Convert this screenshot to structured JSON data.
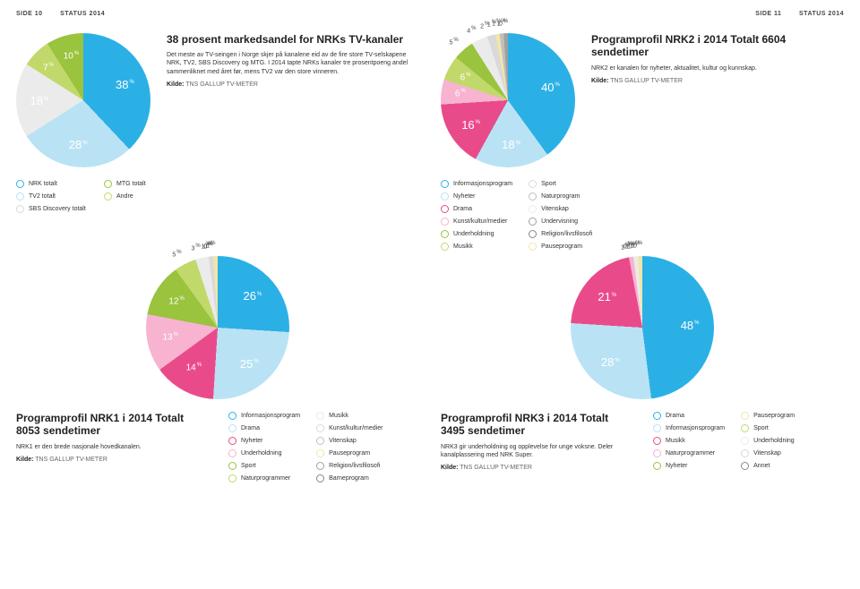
{
  "header": {
    "left_page": "SIDE 10",
    "left_status": "STATUS 2014",
    "right_page": "SIDE 11",
    "right_status": "STATUS 2014"
  },
  "chart1": {
    "title": "38 prosent markedsandel for NRKs TV-kanaler",
    "body": "Det meste av TV-seingen i Norge skjer på kanalene eid av de fire store TV-selskapene NRK, TV2, SBS Discovery og MTG. I 2014 tapte NRKs kanaler tre prosentpoeng andel sammenliknet med året før, mens TV2 var den store vinneren.",
    "source_label": "Kilde:",
    "source": "TNS GALLUP TV-METER",
    "size": 150,
    "slices": [
      {
        "label": "38",
        "pct": 38,
        "color": "#2bb0e6"
      },
      {
        "label": "28",
        "pct": 28,
        "color": "#b9e3f5"
      },
      {
        "label": "18",
        "pct": 18,
        "color": "#ebebeb"
      },
      {
        "label": "7",
        "pct": 7,
        "color": "#c1d96a"
      },
      {
        "label": "10",
        "pct": 10,
        "color": "#9ac33e"
      }
    ],
    "legend": [
      {
        "label": "NRK totalt",
        "color": "#2bb0e6"
      },
      {
        "label": "TV2 totalt",
        "color": "#b9e3f5"
      },
      {
        "label": "SBS Discovery totalt",
        "color": "#d9d9d9"
      },
      {
        "label": "MTG totalt",
        "color": "#9ac33e"
      },
      {
        "label": "Andre",
        "color": "#c1d96a"
      }
    ]
  },
  "chart2": {
    "title": "Programprofil NRK2 i 2014 Totalt 6604 sendetimer",
    "body": "NRK2 er kanalen for nyheter, aktualitet, kultur og kunnskap.",
    "source_label": "Kilde:",
    "source": "TNS GALLUP TV-METER",
    "size": 150,
    "slices": [
      {
        "label": "40",
        "pct": 40,
        "color": "#2bb0e6"
      },
      {
        "label": "18",
        "pct": 18,
        "color": "#b9e3f5"
      },
      {
        "label": "16",
        "pct": 16,
        "color": "#e94b8a"
      },
      {
        "label": "6",
        "pct": 6,
        "color": "#f7b3d0"
      },
      {
        "label": "6",
        "pct": 6,
        "color": "#c1d96a"
      },
      {
        "label": "5",
        "pct": 5,
        "color": "#9ac33e"
      },
      {
        "label": "4",
        "pct": 4,
        "color": "#ebebeb"
      },
      {
        "label": "2",
        "pct": 2,
        "color": "#d9d9d9"
      },
      {
        "label": "1",
        "pct": 1,
        "color": "#f0e6a8"
      },
      {
        "label": "1",
        "pct": 1,
        "color": "#bfbfbf"
      },
      {
        "label": "1",
        "pct": 1,
        "color": "#a0a0a0"
      },
      {
        "label": "0",
        "pct": 0,
        "color": "#888"
      }
    ],
    "legend": [
      {
        "label": "Informasjonsprogram",
        "color": "#2bb0e6"
      },
      {
        "label": "Nyheter",
        "color": "#b9e3f5"
      },
      {
        "label": "Drama",
        "color": "#e94b8a"
      },
      {
        "label": "Kunst/kultur/medier",
        "color": "#f7b3d0"
      },
      {
        "label": "Underholdning",
        "color": "#9ac33e"
      },
      {
        "label": "Musikk",
        "color": "#c1d96a"
      },
      {
        "label": "Sport",
        "color": "#d9d9d9"
      },
      {
        "label": "Naturprogram",
        "color": "#bfbfbf"
      },
      {
        "label": "Vitenskap",
        "color": "#ebebeb"
      },
      {
        "label": "Undervisning",
        "color": "#a0a0a0"
      },
      {
        "label": "Religion/livsfilosofi",
        "color": "#888"
      },
      {
        "label": "Pauseprogram",
        "color": "#f0e6a8"
      }
    ]
  },
  "chart3": {
    "title": "Programprofil NRK1 i 2014 Totalt 8053 sendetimer",
    "body": "NRK1 er den brede nasjonale hovedkanalen.",
    "source_label": "Kilde:",
    "source": "TNS GALLUP TV-METER",
    "size": 160,
    "slices": [
      {
        "label": "26",
        "pct": 26,
        "color": "#2bb0e6"
      },
      {
        "label": "25",
        "pct": 25,
        "color": "#b9e3f5"
      },
      {
        "label": "14",
        "pct": 14,
        "color": "#e94b8a"
      },
      {
        "label": "13",
        "pct": 13,
        "color": "#f7b3d0"
      },
      {
        "label": "12",
        "pct": 12,
        "color": "#9ac33e"
      },
      {
        "label": "5",
        "pct": 5,
        "color": "#c1d96a"
      },
      {
        "label": "3",
        "pct": 3,
        "color": "#ebebeb"
      },
      {
        "label": "1",
        "pct": 1,
        "color": "#d9d9d9"
      },
      {
        "label": "0",
        "pct": 0,
        "color": "#bfbfbf"
      },
      {
        "label": "0",
        "pct": 0,
        "color": "#a0a0a0"
      },
      {
        "label": "0",
        "pct": 0,
        "color": "#888"
      },
      {
        "label": "1",
        "pct": 1,
        "color": "#f0e6a8"
      }
    ],
    "legend": [
      {
        "label": "Informasjonsprogram",
        "color": "#2bb0e6"
      },
      {
        "label": "Drama",
        "color": "#b9e3f5"
      },
      {
        "label": "Nyheter",
        "color": "#e94b8a"
      },
      {
        "label": "Underholdning",
        "color": "#f7b3d0"
      },
      {
        "label": "Sport",
        "color": "#9ac33e"
      },
      {
        "label": "Naturprogrammer",
        "color": "#c1d96a"
      },
      {
        "label": "Musikk",
        "color": "#ebebeb"
      },
      {
        "label": "Kunst/kultur/medier",
        "color": "#d9d9d9"
      },
      {
        "label": "Vitenskap",
        "color": "#bfbfbf"
      },
      {
        "label": "Pauseprogram",
        "color": "#f0e6a8"
      },
      {
        "label": "Religion/livsfilosofi",
        "color": "#a0a0a0"
      },
      {
        "label": "Barneprogram",
        "color": "#888"
      }
    ]
  },
  "chart4": {
    "title": "Programprofil NRK3 i 2014 Totalt 3495 sendetimer",
    "body": "NRK3 gir underholdning og opplevelse for unge voksne. Deler kanalplassering med NRK Super.",
    "source_label": "Kilde:",
    "source": "TNS GALLUP TV-METER",
    "size": 160,
    "slices": [
      {
        "label": "48",
        "pct": 48,
        "color": "#2bb0e6"
      },
      {
        "label": "28",
        "pct": 28,
        "color": "#b9e3f5"
      },
      {
        "label": "21",
        "pct": 21,
        "color": "#e94b8a"
      },
      {
        "label": "1",
        "pct": 1,
        "color": "#f7b3d0"
      },
      {
        "label": "0",
        "pct": 0,
        "color": "#9ac33e"
      },
      {
        "label": "0",
        "pct": 0,
        "color": "#c1d96a"
      },
      {
        "label": "1",
        "pct": 1,
        "color": "#ebebeb"
      },
      {
        "label": "0",
        "pct": 0,
        "color": "#d9d9d9"
      },
      {
        "label": "1",
        "pct": 1,
        "color": "#f0e6a8"
      },
      {
        "label": "0",
        "pct": 0,
        "color": "#888"
      }
    ],
    "legend": [
      {
        "label": "Drama",
        "color": "#2bb0e6"
      },
      {
        "label": "Informasjonsprogram",
        "color": "#b9e3f5"
      },
      {
        "label": "Musikk",
        "color": "#e94b8a"
      },
      {
        "label": "Naturprogrammer",
        "color": "#f7b3d0"
      },
      {
        "label": "Nyheter",
        "color": "#9ac33e"
      },
      {
        "label": "Pauseprogram",
        "color": "#f0e6a8"
      },
      {
        "label": "Sport",
        "color": "#c1d96a"
      },
      {
        "label": "Underholdning",
        "color": "#ebebeb"
      },
      {
        "label": "Vitenskap",
        "color": "#d9d9d9"
      },
      {
        "label": "Annet",
        "color": "#888"
      }
    ]
  }
}
